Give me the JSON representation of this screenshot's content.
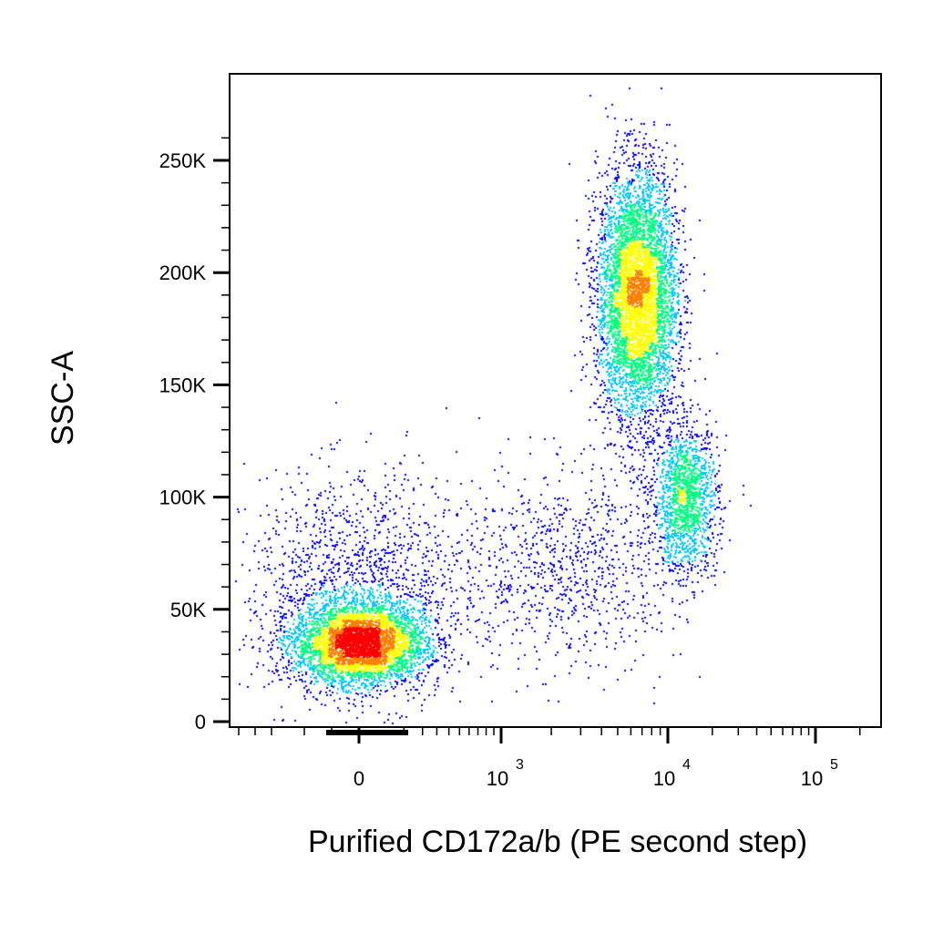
{
  "chart_data": {
    "type": "scatter",
    "subtype": "flow-cytometry-pseudocolor-density",
    "xlabel": "Purified CD172a/b (PE second step)",
    "ylabel": "SSC-A",
    "x_scale": "biexponential",
    "y_scale": "linear",
    "xlim": [
      -150,
      150000
    ],
    "ylim": [
      0,
      262144
    ],
    "x_ticks": [
      {
        "value": 0,
        "label": "0"
      },
      {
        "value": 1000,
        "label_base": "10",
        "label_exp": "3"
      },
      {
        "value": 10000,
        "label_base": "10",
        "label_exp": "4"
      },
      {
        "value": 100000,
        "label_base": "10",
        "label_exp": "5"
      }
    ],
    "y_ticks": [
      {
        "value": 0,
        "label": "0"
      },
      {
        "value": 50000,
        "label": "50K"
      },
      {
        "value": 100000,
        "label": "100K"
      },
      {
        "value": 150000,
        "label": "150K"
      },
      {
        "value": 200000,
        "label": "200K"
      },
      {
        "value": 250000,
        "label": "250K"
      }
    ],
    "grid": false,
    "legend": "none",
    "color_scale": [
      "#0000ff",
      "#00c8ff",
      "#00ff80",
      "#ffff00",
      "#ff8000",
      "#ff0000"
    ],
    "populations": [
      {
        "center_x": 0,
        "center_y": 35000,
        "spread_x": 40,
        "spread_y": 9000,
        "count": 4200
      },
      {
        "center_x": 0,
        "center_y": 60000,
        "spread_x": 70,
        "spread_y": 25000,
        "count": 1500
      },
      {
        "center_x": 6500,
        "center_y": 190000,
        "spread_x": 0.12,
        "spread_y": 28000,
        "count": 5200
      },
      {
        "center_x": 13000,
        "center_y": 100000,
        "spread_x": 0.11,
        "spread_y": 16000,
        "count": 1500
      },
      {
        "center_x": 2500,
        "center_y": 70000,
        "spread_x": 0.35,
        "spread_y": 22000,
        "count": 900
      }
    ]
  }
}
